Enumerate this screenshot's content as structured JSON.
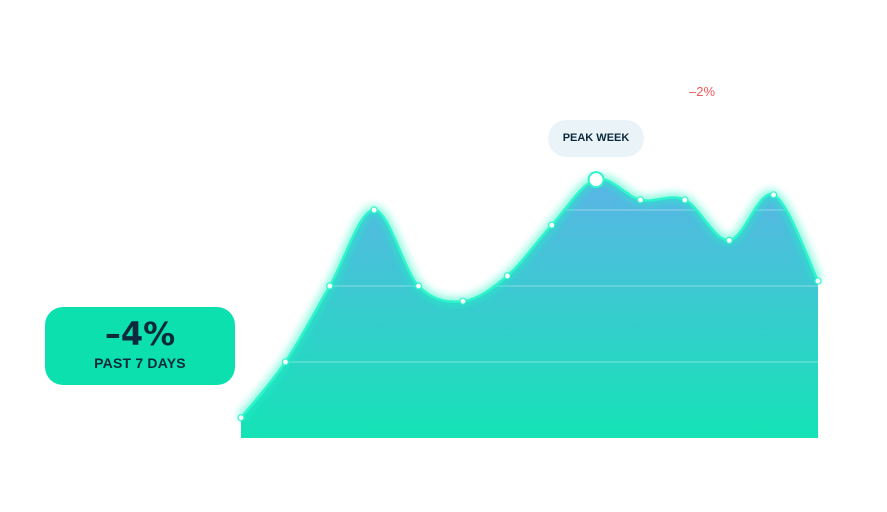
{
  "summary": {
    "change": "–4%",
    "period": "PAST 7 DAYS"
  },
  "peak_label": "PEAK WEEK",
  "delta_label": "–2%",
  "colors": {
    "accent": "#0be0ae",
    "area_top": "#5bb4e6",
    "area_bottom": "#14e3b6",
    "glow": "#1ef2c3",
    "text": "#0d2a3d",
    "negative": "#f25757"
  },
  "chart_data": {
    "type": "area",
    "x": [
      1,
      2,
      3,
      4,
      5,
      6,
      7,
      8,
      9,
      10,
      11,
      12,
      13,
      14
    ],
    "values": [
      4,
      15,
      30,
      45,
      30,
      27,
      32,
      42,
      51,
      47,
      47,
      39,
      48,
      31
    ],
    "ylim": [
      0,
      60
    ],
    "highlight_index": 8,
    "grid": true
  }
}
